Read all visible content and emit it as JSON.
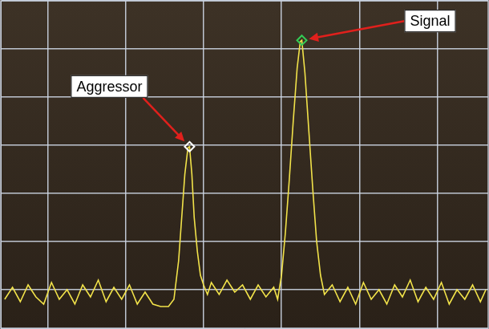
{
  "chart_data": {
    "type": "line",
    "x": [
      0.45,
      0.55,
      0.65,
      0.75,
      0.85,
      0.95,
      1.05,
      1.15,
      1.25,
      1.35,
      1.45,
      1.55,
      1.65,
      1.75,
      1.85,
      1.95,
      2.05,
      2.15,
      2.25,
      2.35,
      2.45,
      2.55,
      2.62,
      2.68,
      2.72,
      2.76,
      2.8,
      2.82,
      2.85,
      2.88,
      2.92,
      2.96,
      3.0,
      3.05,
      3.1,
      3.2,
      3.3,
      3.4,
      3.5,
      3.6,
      3.7,
      3.8,
      3.9,
      3.95,
      4.0,
      4.05,
      4.1,
      4.15,
      4.2,
      4.24,
      4.26,
      4.3,
      4.35,
      4.4,
      4.45,
      4.5,
      4.55,
      4.65,
      4.75,
      4.85,
      4.95,
      5.05,
      5.15,
      5.25,
      5.35,
      5.45,
      5.55,
      5.65,
      5.75,
      5.85,
      5.95,
      6.05,
      6.15,
      6.25,
      6.35,
      6.45,
      6.55,
      6.62
    ],
    "values": [
      -0.2,
      0.05,
      -0.25,
      0.1,
      -0.15,
      -0.3,
      0.15,
      -0.2,
      0.0,
      -0.3,
      0.1,
      -0.15,
      0.2,
      -0.25,
      0.05,
      -0.2,
      0.1,
      -0.3,
      -0.05,
      -0.3,
      -0.35,
      -0.35,
      -0.2,
      0.6,
      1.5,
      2.4,
      2.95,
      2.97,
      2.4,
      1.5,
      0.8,
      0.3,
      0.1,
      -0.1,
      0.15,
      -0.1,
      0.2,
      -0.05,
      0.1,
      -0.2,
      0.1,
      -0.15,
      0.05,
      -0.2,
      0.3,
      1.2,
      2.3,
      3.5,
      4.6,
      5.15,
      5.18,
      4.5,
      3.3,
      2.1,
      1.0,
      0.3,
      -0.1,
      0.1,
      -0.25,
      0.05,
      -0.3,
      0.15,
      -0.2,
      0.0,
      -0.3,
      0.1,
      -0.15,
      0.2,
      -0.25,
      0.05,
      -0.2,
      0.15,
      -0.3,
      0.0,
      -0.2,
      0.1,
      -0.25,
      0.0
    ],
    "color": "#f2e34a",
    "xlim": [
      0.4,
      6.65
    ],
    "ylim": [
      -0.8,
      6
    ],
    "xticks": [
      1,
      2,
      3,
      4,
      5,
      6
    ],
    "yticks": [
      0,
      1,
      2,
      3,
      4,
      5,
      6
    ],
    "grid": true,
    "tick_labels": false,
    "annotations": [
      {
        "text": "Aggressor",
        "x": 2.82,
        "y": 2.97,
        "color": "#ffffff"
      },
      {
        "text": "Signal",
        "x": 4.26,
        "y": 5.18,
        "color": "#33cc55"
      }
    ]
  }
}
